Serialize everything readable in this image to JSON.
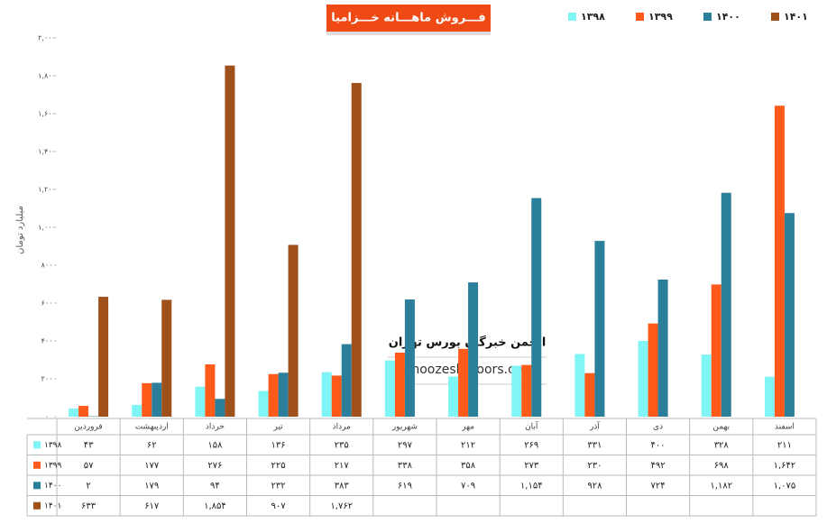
{
  "chart_data": {
    "type": "bar",
    "title": "فـــروش ماهـــانه خـــزامیا",
    "y_label": "میلیارد تومان",
    "watermark": [
      "انجمن خبرگان بورس تهران",
      "amoozesh-boors.com"
    ],
    "categories": [
      "فروردین",
      "اردیبهشت",
      "خرداد",
      "تیر",
      "مرداد",
      "شهریور",
      "مهر",
      "آبان",
      "آذر",
      "دی",
      "بهمن",
      "اسفند"
    ],
    "series": [
      {
        "name": "۱۳۹۸",
        "color": "#7ff5f5",
        "values": [
          43,
          62,
          158,
          136,
          235,
          297,
          212,
          269,
          331,
          400,
          328,
          211
        ],
        "value_labels": [
          "۴۳",
          "۶۲",
          "۱۵۸",
          "۱۳۶",
          "۲۳۵",
          "۲۹۷",
          "۲۱۲",
          "۲۶۹",
          "۳۳۱",
          "۴۰۰",
          "۳۲۸",
          "۲۱۱"
        ]
      },
      {
        "name": "۱۳۹۹",
        "color": "#ff5a1a",
        "values": [
          57,
          177,
          276,
          225,
          217,
          338,
          358,
          273,
          230,
          492,
          698,
          1642
        ],
        "value_labels": [
          "۵۷",
          "۱۷۷",
          "۲۷۶",
          "۲۲۵",
          "۲۱۷",
          "۳۳۸",
          "۳۵۸",
          "۲۷۳",
          "۲۳۰",
          "۴۹۲",
          "۶۹۸",
          "۱,۶۴۲"
        ]
      },
      {
        "name": "۱۴۰۰",
        "color": "#2b7f9a",
        "values": [
          2,
          179,
          94,
          232,
          383,
          619,
          709,
          1154,
          928,
          724,
          1182,
          1075
        ],
        "value_labels": [
          "۲",
          "۱۷۹",
          "۹۴",
          "۲۳۲",
          "۳۸۳",
          "۶۱۹",
          "۷۰۹",
          "۱,۱۵۴",
          "۹۲۸",
          "۷۲۴",
          "۱,۱۸۲",
          "۱,۰۷۵"
        ]
      },
      {
        "name": "۱۴۰۱",
        "color": "#a0501a",
        "values": [
          633,
          617,
          1854,
          907,
          1762,
          null,
          null,
          null,
          null,
          null,
          null,
          null
        ],
        "value_labels": [
          "۶۳۳",
          "۶۱۷",
          "۱,۸۵۴",
          "۹۰۷",
          "۱,۷۶۲",
          null,
          null,
          null,
          null,
          null,
          null,
          null
        ]
      }
    ],
    "ylim": [
      0,
      2000
    ],
    "yticks": [
      {
        "value": 0,
        "label": "۰"
      },
      {
        "value": 200,
        "label": "۲۰۰"
      },
      {
        "value": 400,
        "label": "۴۰۰"
      },
      {
        "value": 600,
        "label": "۶۰۰"
      },
      {
        "value": 800,
        "label": "۸۰۰"
      },
      {
        "value": 1000,
        "label": "۱,۰۰۰"
      },
      {
        "value": 1200,
        "label": "۱,۲۰۰"
      },
      {
        "value": 1400,
        "label": "۱,۴۰۰"
      },
      {
        "value": 1600,
        "label": "۱,۶۰۰"
      },
      {
        "value": 1800,
        "label": "۱,۸۰۰"
      },
      {
        "value": 2000,
        "label": "۲,۰۰۰"
      }
    ]
  }
}
